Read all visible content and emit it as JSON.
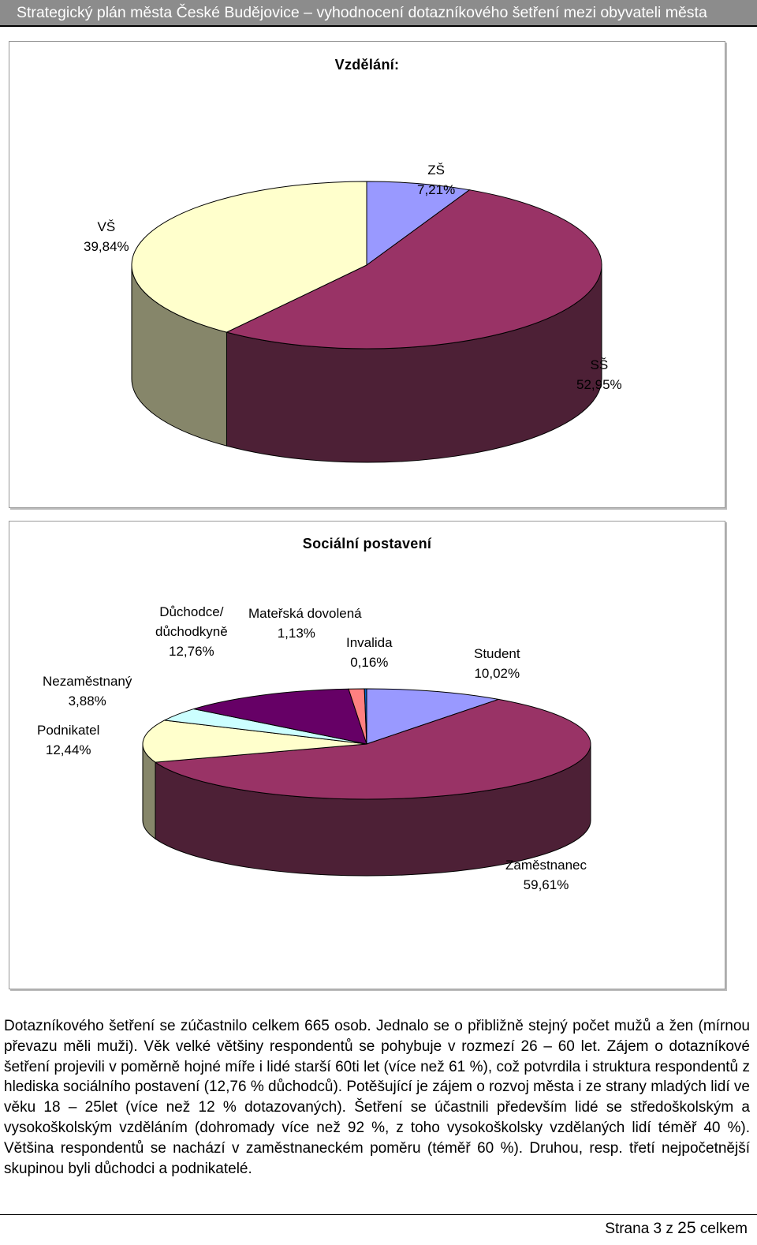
{
  "header": {
    "title": "Strategický plán města České Budějovice – vyhodnocení dotazníkového šetření mezi obyvateli města"
  },
  "charts": [
    {
      "type": "pie",
      "title": "Vzdělání:",
      "slices": [
        {
          "label": "ZŠ",
          "value": 7.21,
          "value_text": "7,21%",
          "color": "#9999ff",
          "side": "#5a5a99"
        },
        {
          "label": "SŠ",
          "value": 52.95,
          "value_text": "52,95%",
          "color": "#993366",
          "side": "#4d2036"
        },
        {
          "label": "VŠ",
          "value": 39.84,
          "value_text": "39,84%",
          "color": "#ffffcc",
          "side": "#86866a"
        }
      ]
    },
    {
      "type": "pie",
      "title": "Sociální postavení",
      "slices": [
        {
          "label": "Student",
          "value": 10.02,
          "value_text": "10,02%",
          "color": "#9999ff",
          "side": "#5a5a99"
        },
        {
          "label": "Zaměstnanec",
          "value": 59.61,
          "value_text": "59,61%",
          "color": "#993366",
          "side": "#4d2036"
        },
        {
          "label": "Podnikatel",
          "value": 12.44,
          "value_text": "12,44%",
          "color": "#ffffcc",
          "side": "#86866a"
        },
        {
          "label": "Nezaměstnaný",
          "value": 3.88,
          "value_text": "3,88%",
          "color": "#ccffff",
          "side": "#6a8686"
        },
        {
          "label": "Důchodce/ důchodkyně",
          "label_lines": [
            "Důchodce/",
            "důchodkyně"
          ],
          "value": 12.76,
          "value_text": "12,76%",
          "color": "#660066",
          "side": "#330033"
        },
        {
          "label": "Mateřská dovolená",
          "value": 1.13,
          "value_text": "1,13%",
          "color": "#ff8080",
          "side": "#994d4d"
        },
        {
          "label": "Invalida",
          "value": 0.16,
          "value_text": "0,16%",
          "color": "#0066cc",
          "side": "#003366"
        }
      ]
    }
  ],
  "chart_data": [
    {
      "type": "pie",
      "title": "Vzdělání:",
      "categories": [
        "ZŠ",
        "SŠ",
        "VŠ"
      ],
      "values": [
        7.21,
        52.95,
        39.84
      ]
    },
    {
      "type": "pie",
      "title": "Sociální postavení",
      "categories": [
        "Student",
        "Zaměstnanec",
        "Podnikatel",
        "Nezaměstnaný",
        "Důchodce/ důchodkyně",
        "Mateřská dovolená",
        "Invalida"
      ],
      "values": [
        10.02,
        59.61,
        12.44,
        3.88,
        12.76,
        1.13,
        0.16
      ]
    }
  ],
  "body": {
    "paragraph": "Dotazníkového šetření se zúčastnilo celkem 665 osob. Jednalo se o přibližně stejný počet mužů a žen (mírnou převazu měli muži). Věk velké většiny respondentů se pohybuje v rozmezí 26 – 60 let. Zájem o dotazníkové šetření projevili v poměrně hojné míře i lidé starší 60ti let (více než 61 %), což potvrdila i struktura respondentů z hlediska sociálního postavení (12,76 % důchodců). Potěšující je zájem o rozvoj města i ze strany mladých lidí ve věku 18 – 25let (více než 12 % dotazovaných). Šetření se účastnili především lidé se středoškolským a vysokoškolským vzděláním (dohromady více než 92 %, z toho vysokoškolsky vzdělaných lidí téměř 40 %). Většina respondentů se nachází v zaměstnaneckém poměru (téměř 60 %). Druhou, resp. třetí nejpočetnější skupinou byli důchodci a podnikatelé."
  },
  "footer": {
    "prefix": "Strana 3 z ",
    "total": "25",
    "suffix": " celkem"
  }
}
